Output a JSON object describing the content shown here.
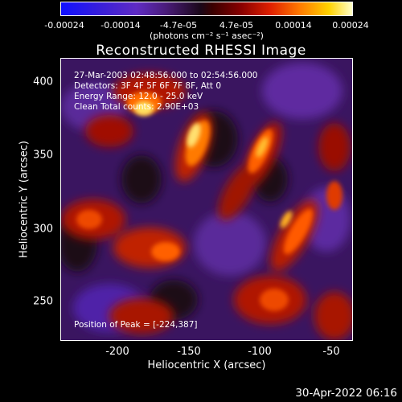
{
  "colorbar": {
    "ticks": [
      "-0.00024",
      "-0.00014",
      "-4.7e-05",
      "4.7e-05",
      "0.00014",
      "0.00024"
    ],
    "unit_label": "(photons cm⁻² s⁻¹ asec⁻²)"
  },
  "title": "Reconstructed RHESSI Image",
  "annotations": {
    "time": "27-Mar-2003 02:48:56.000 to 02:54:56.000",
    "detectors": "Detectors: 3F 4F 5F 6F 7F 8F, Att 0",
    "energy": "Energy Range: 12.0 - 25.0 keV",
    "method": "Clean    Total counts: 2.90E+03",
    "peak": "Position of Peak = [-224,387]"
  },
  "axes": {
    "xlabel": "Heliocentric X (arcsec)",
    "ylabel": "Heliocentric Y (arcsec)",
    "xticks": [
      "-200",
      "-150",
      "-100",
      "-50"
    ],
    "yticks": [
      "400",
      "350",
      "300",
      "250"
    ]
  },
  "footer": {
    "datestamp": "30-Apr-2022 06:16"
  }
}
